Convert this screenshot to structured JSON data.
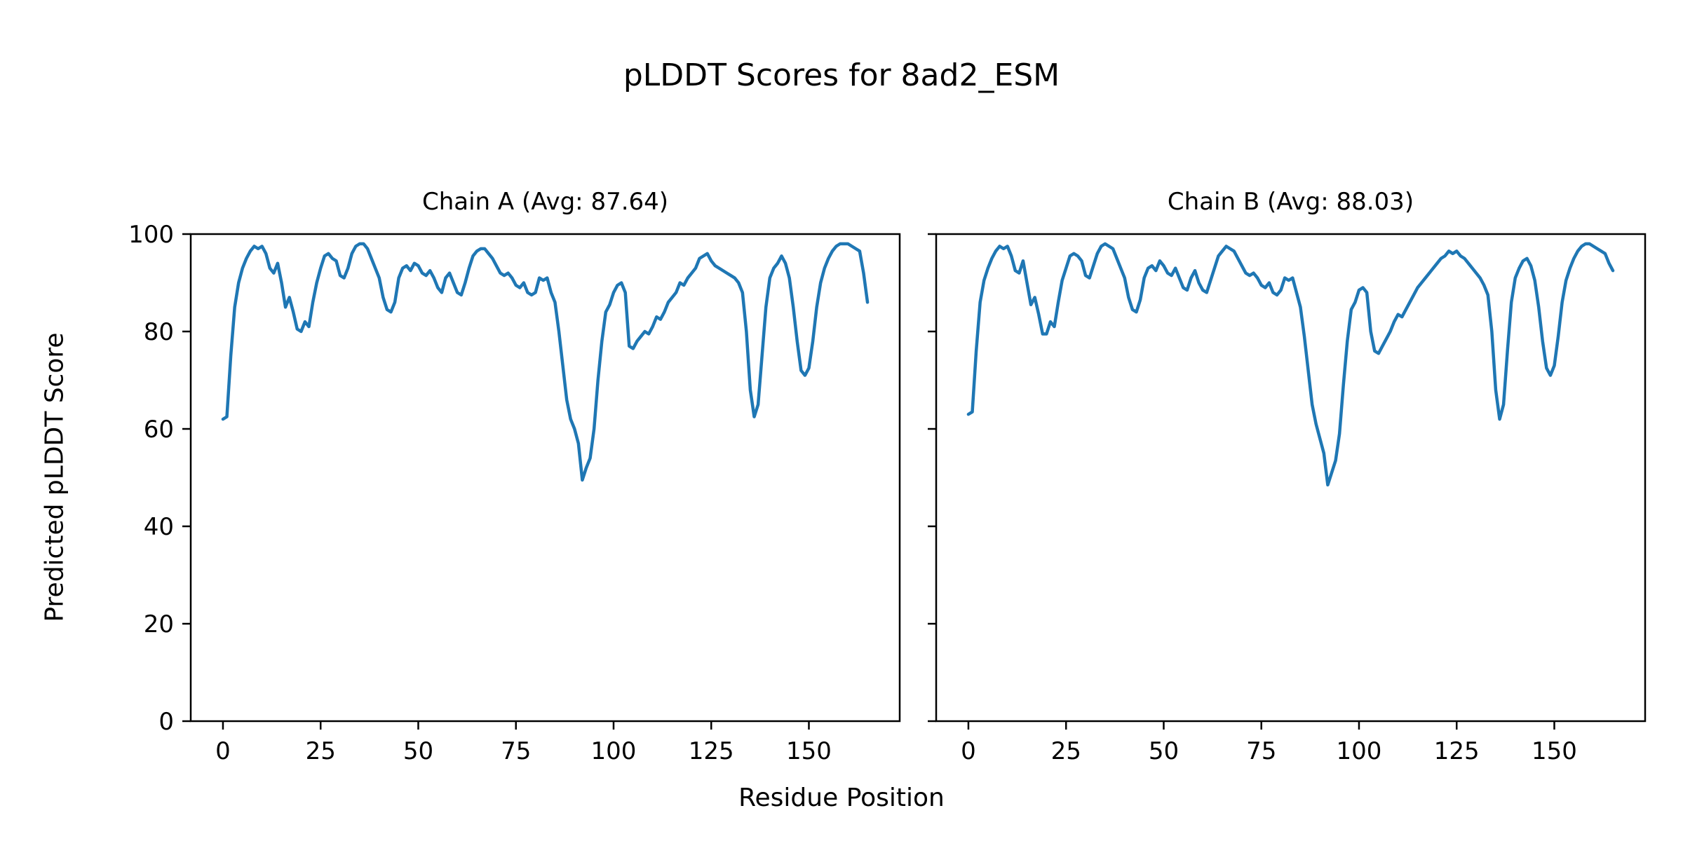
{
  "figure": {
    "title": "pLDDT Scores for 8ad2_ESM",
    "xlabel": "Residue Position",
    "ylabel": "Predicted pLDDT Score"
  },
  "chart_data": [
    {
      "type": "line",
      "title": "Chain A (Avg: 87.64)",
      "avg": 87.64,
      "xlabel": "Residue Position",
      "ylabel": "Predicted pLDDT Score",
      "line_color": "#1f77b4",
      "line_width": 4.5,
      "grid": false,
      "xlim": [
        -8.25,
        173.25
      ],
      "ylim": [
        0,
        100
      ],
      "xticks": [
        0,
        25,
        50,
        75,
        100,
        125,
        150
      ],
      "yticks": [
        0,
        20,
        40,
        60,
        80,
        100
      ],
      "x_start": 0,
      "values": [
        62,
        62.5,
        75,
        85,
        90,
        93,
        95,
        96.5,
        97.5,
        97,
        97.5,
        96,
        93,
        92,
        94,
        90,
        85,
        87,
        84,
        80.5,
        80,
        82,
        81,
        86,
        90,
        93,
        95.5,
        96,
        95,
        94.5,
        91.5,
        91,
        93,
        96,
        97.5,
        98,
        98,
        97,
        95,
        93,
        91,
        87,
        84.5,
        84,
        86,
        91,
        93,
        93.5,
        92.5,
        94,
        93.5,
        92,
        91.5,
        92.5,
        91,
        89,
        88,
        91,
        92,
        90,
        88,
        87.5,
        90,
        93,
        95.5,
        96.5,
        97,
        97,
        96,
        95,
        93.5,
        92,
        91.5,
        92,
        91,
        89.5,
        89,
        90,
        88,
        87.5,
        88,
        91,
        90.5,
        91,
        88,
        86,
        80,
        73,
        66,
        62,
        60,
        57,
        49.5,
        52,
        54,
        60,
        70,
        78,
        84,
        85.5,
        88,
        89.5,
        90,
        88,
        77,
        76.5,
        78,
        79,
        80,
        79.5,
        81,
        83,
        82.5,
        84,
        86,
        87,
        88,
        90,
        89.5,
        91,
        92,
        93,
        95,
        95.5,
        96,
        94.5,
        93.5,
        93,
        92.5,
        92,
        91.5,
        91,
        90,
        88,
        80,
        68,
        62.5,
        65,
        75,
        85,
        91,
        93,
        94,
        95.5,
        94,
        91,
        85,
        78,
        72,
        71,
        72.5,
        78,
        85,
        90,
        93,
        95,
        96.5,
        97.5,
        98,
        98,
        98,
        97.5,
        97,
        96.5,
        92,
        86
      ]
    },
    {
      "type": "line",
      "title": "Chain B (Avg: 88.03)",
      "avg": 88.03,
      "xlabel": "Residue Position",
      "ylabel": "Predicted pLDDT Score",
      "line_color": "#1f77b4",
      "line_width": 4.5,
      "grid": false,
      "xlim": [
        -8.25,
        173.25
      ],
      "ylim": [
        0,
        100
      ],
      "xticks": [
        0,
        25,
        50,
        75,
        100,
        125,
        150
      ],
      "yticks": [
        0,
        20,
        40,
        60,
        80,
        100
      ],
      "x_start": 0,
      "values": [
        63,
        63.5,
        76,
        86,
        90.5,
        93,
        95,
        96.5,
        97.5,
        97,
        97.5,
        95.5,
        92.5,
        92,
        94.5,
        90,
        85.5,
        87,
        83.5,
        79.5,
        79.5,
        82,
        81,
        86,
        90.5,
        93,
        95.5,
        96,
        95.5,
        94.5,
        91.5,
        91,
        93.5,
        96,
        97.5,
        98,
        97.5,
        97,
        95,
        93,
        91,
        87,
        84.5,
        84,
        86.5,
        91,
        93,
        93.5,
        92.5,
        94.5,
        93.5,
        92,
        91.5,
        93,
        91,
        89,
        88.5,
        91,
        92.5,
        90,
        88.5,
        88,
        90.5,
        93,
        95.5,
        96.5,
        97.5,
        97,
        96.5,
        95,
        93.5,
        92,
        91.5,
        92,
        91,
        89.5,
        89,
        90,
        88,
        87.5,
        88.5,
        91,
        90.5,
        91,
        88,
        85,
        79,
        72,
        65,
        61,
        58,
        55,
        48.5,
        51,
        53.5,
        59,
        69,
        78,
        84.5,
        86,
        88.5,
        89,
        88,
        80,
        76,
        75.5,
        77,
        78.5,
        80,
        82,
        83.5,
        83,
        84.5,
        86,
        87.5,
        89,
        90,
        91,
        92,
        93,
        94,
        95,
        95.5,
        96.5,
        96,
        96.5,
        95.5,
        95,
        94,
        93,
        92,
        91,
        89.5,
        87.5,
        80,
        68,
        62,
        65,
        76,
        86,
        91,
        93,
        94.5,
        95,
        93.5,
        90.5,
        85,
        78,
        72.5,
        71,
        73,
        79,
        86,
        90.5,
        93,
        95,
        96.5,
        97.5,
        98,
        98,
        97.5,
        97,
        96.5,
        96,
        94,
        92.5
      ]
    }
  ],
  "style": {
    "axis_color": "#000000",
    "tick_font_size": 34
  }
}
